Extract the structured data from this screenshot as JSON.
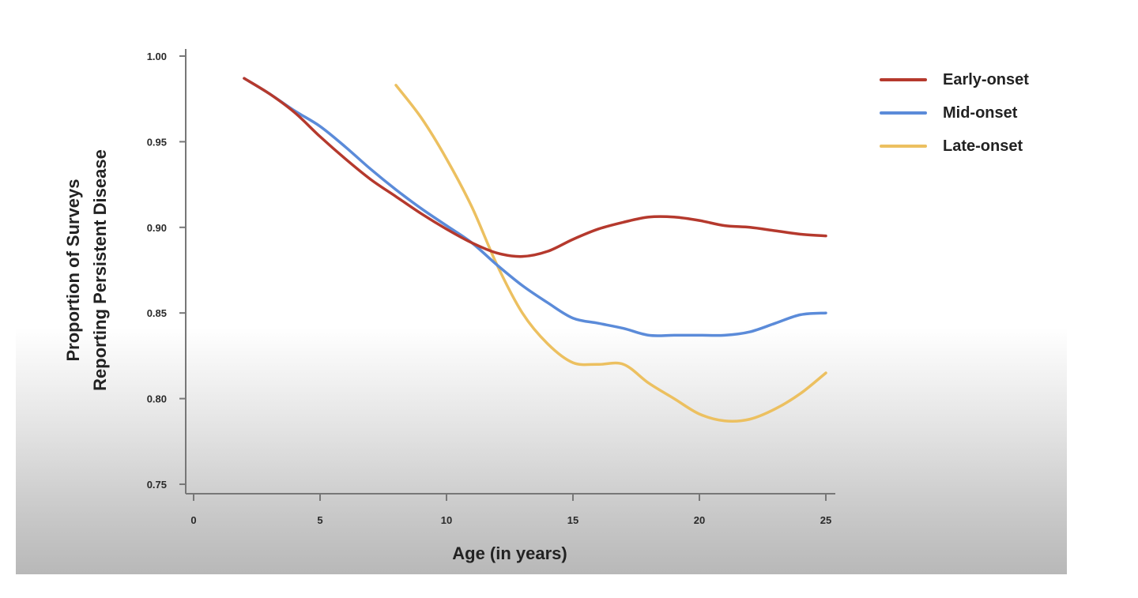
{
  "chart_data": {
    "type": "line",
    "title": "",
    "xlabel": "Age (in years)",
    "ylabel": [
      "Proportion of Surveys",
      "Reporting Persistent Disease"
    ],
    "xlim": [
      0,
      25
    ],
    "ylim": [
      0.75,
      1.0
    ],
    "x_ticks": [
      0,
      5,
      10,
      15,
      20,
      25
    ],
    "y_ticks": [
      "1.00",
      "0.95",
      "0.90",
      "0.85",
      "0.80",
      "0.75"
    ],
    "grid": false,
    "legend_position": "right-top",
    "series": [
      {
        "name": "Early-onset",
        "color": "#b5392d",
        "x": [
          2,
          3,
          4,
          5,
          6,
          7,
          8,
          9,
          10,
          11,
          12,
          13,
          14,
          15,
          16,
          17,
          18,
          19,
          20,
          21,
          22,
          23,
          24,
          25
        ],
        "values": [
          0.987,
          0.978,
          0.967,
          0.953,
          0.94,
          0.928,
          0.918,
          0.908,
          0.899,
          0.891,
          0.885,
          0.883,
          0.886,
          0.893,
          0.899,
          0.903,
          0.906,
          0.906,
          0.904,
          0.901,
          0.9,
          0.898,
          0.896,
          0.895
        ]
      },
      {
        "name": "Mid-onset",
        "color": "#5b8bd9",
        "x": [
          2,
          3,
          4,
          5,
          6,
          7,
          8,
          9,
          10,
          11,
          12,
          13,
          14,
          15,
          16,
          17,
          18,
          19,
          20,
          21,
          22,
          23,
          24,
          25
        ],
        "values": [
          0.987,
          0.978,
          0.968,
          0.959,
          0.947,
          0.934,
          0.922,
          0.911,
          0.901,
          0.891,
          0.878,
          0.866,
          0.856,
          0.847,
          0.844,
          0.841,
          0.837,
          0.837,
          0.837,
          0.837,
          0.839,
          0.844,
          0.849,
          0.85
        ]
      },
      {
        "name": "Late-onset",
        "color": "#ecc060",
        "x": [
          8,
          9,
          10,
          11,
          12,
          13,
          14,
          15,
          16,
          17,
          18,
          19,
          20,
          21,
          22,
          23,
          24,
          25
        ],
        "values": [
          0.983,
          0.964,
          0.94,
          0.912,
          0.878,
          0.85,
          0.832,
          0.821,
          0.82,
          0.82,
          0.809,
          0.8,
          0.791,
          0.787,
          0.788,
          0.794,
          0.803,
          0.815
        ]
      }
    ]
  },
  "legend": {
    "items": [
      {
        "label": "Early-onset",
        "color": "#b5392d"
      },
      {
        "label": "Mid-onset",
        "color": "#5b8bd9"
      },
      {
        "label": "Late-onset",
        "color": "#ecc060"
      }
    ]
  }
}
